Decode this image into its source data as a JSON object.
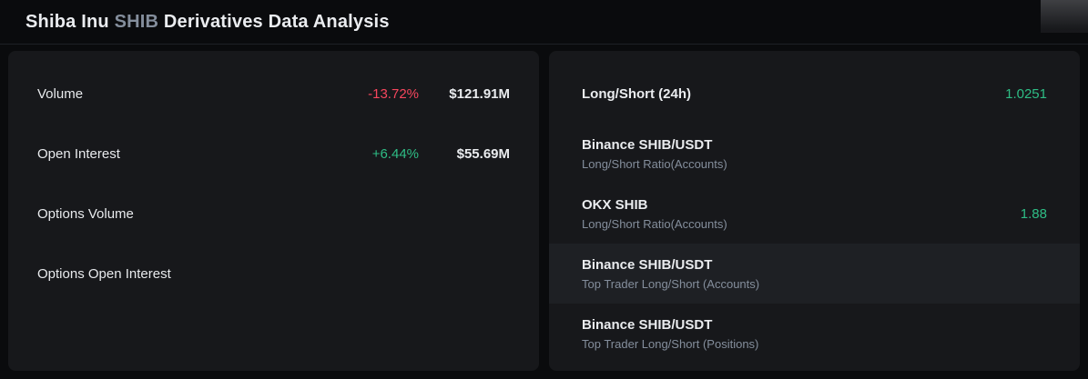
{
  "header": {
    "title_coin": "Shiba Inu ",
    "title_ticker": "SHIB",
    "title_rest": " Derivatives Data Analysis"
  },
  "colors": {
    "up": "#2ebd85",
    "down": "#f6465d",
    "panel_background": "#17181b",
    "page_background": "#0a0b0d",
    "muted_text": "#848e9c"
  },
  "left_panel": {
    "rows": [
      {
        "label": "Volume",
        "change": "-13.72%",
        "direction": "down",
        "value": "$121.91M"
      },
      {
        "label": "Open Interest",
        "change": "+6.44%",
        "direction": "up",
        "value": "$55.69M"
      },
      {
        "label": "Options Volume",
        "change": "",
        "direction": "",
        "value": ""
      },
      {
        "label": "Options Open Interest",
        "change": "",
        "direction": "",
        "value": ""
      }
    ]
  },
  "right_panel": {
    "rows": [
      {
        "title": "Long/Short (24h)",
        "subtitle": "",
        "value": "1.0251"
      },
      {
        "title": "Binance SHIB/USDT",
        "subtitle": "Long/Short Ratio(Accounts)",
        "value": ""
      },
      {
        "title": "OKX SHIB",
        "subtitle": "Long/Short Ratio(Accounts)",
        "value": "1.88"
      },
      {
        "title": "Binance SHIB/USDT",
        "subtitle": "Top Trader Long/Short (Accounts)",
        "value": "",
        "state": "highlight"
      },
      {
        "title": "Binance SHIB/USDT",
        "subtitle": "Top Trader Long/Short (Positions)",
        "value": ""
      }
    ]
  }
}
